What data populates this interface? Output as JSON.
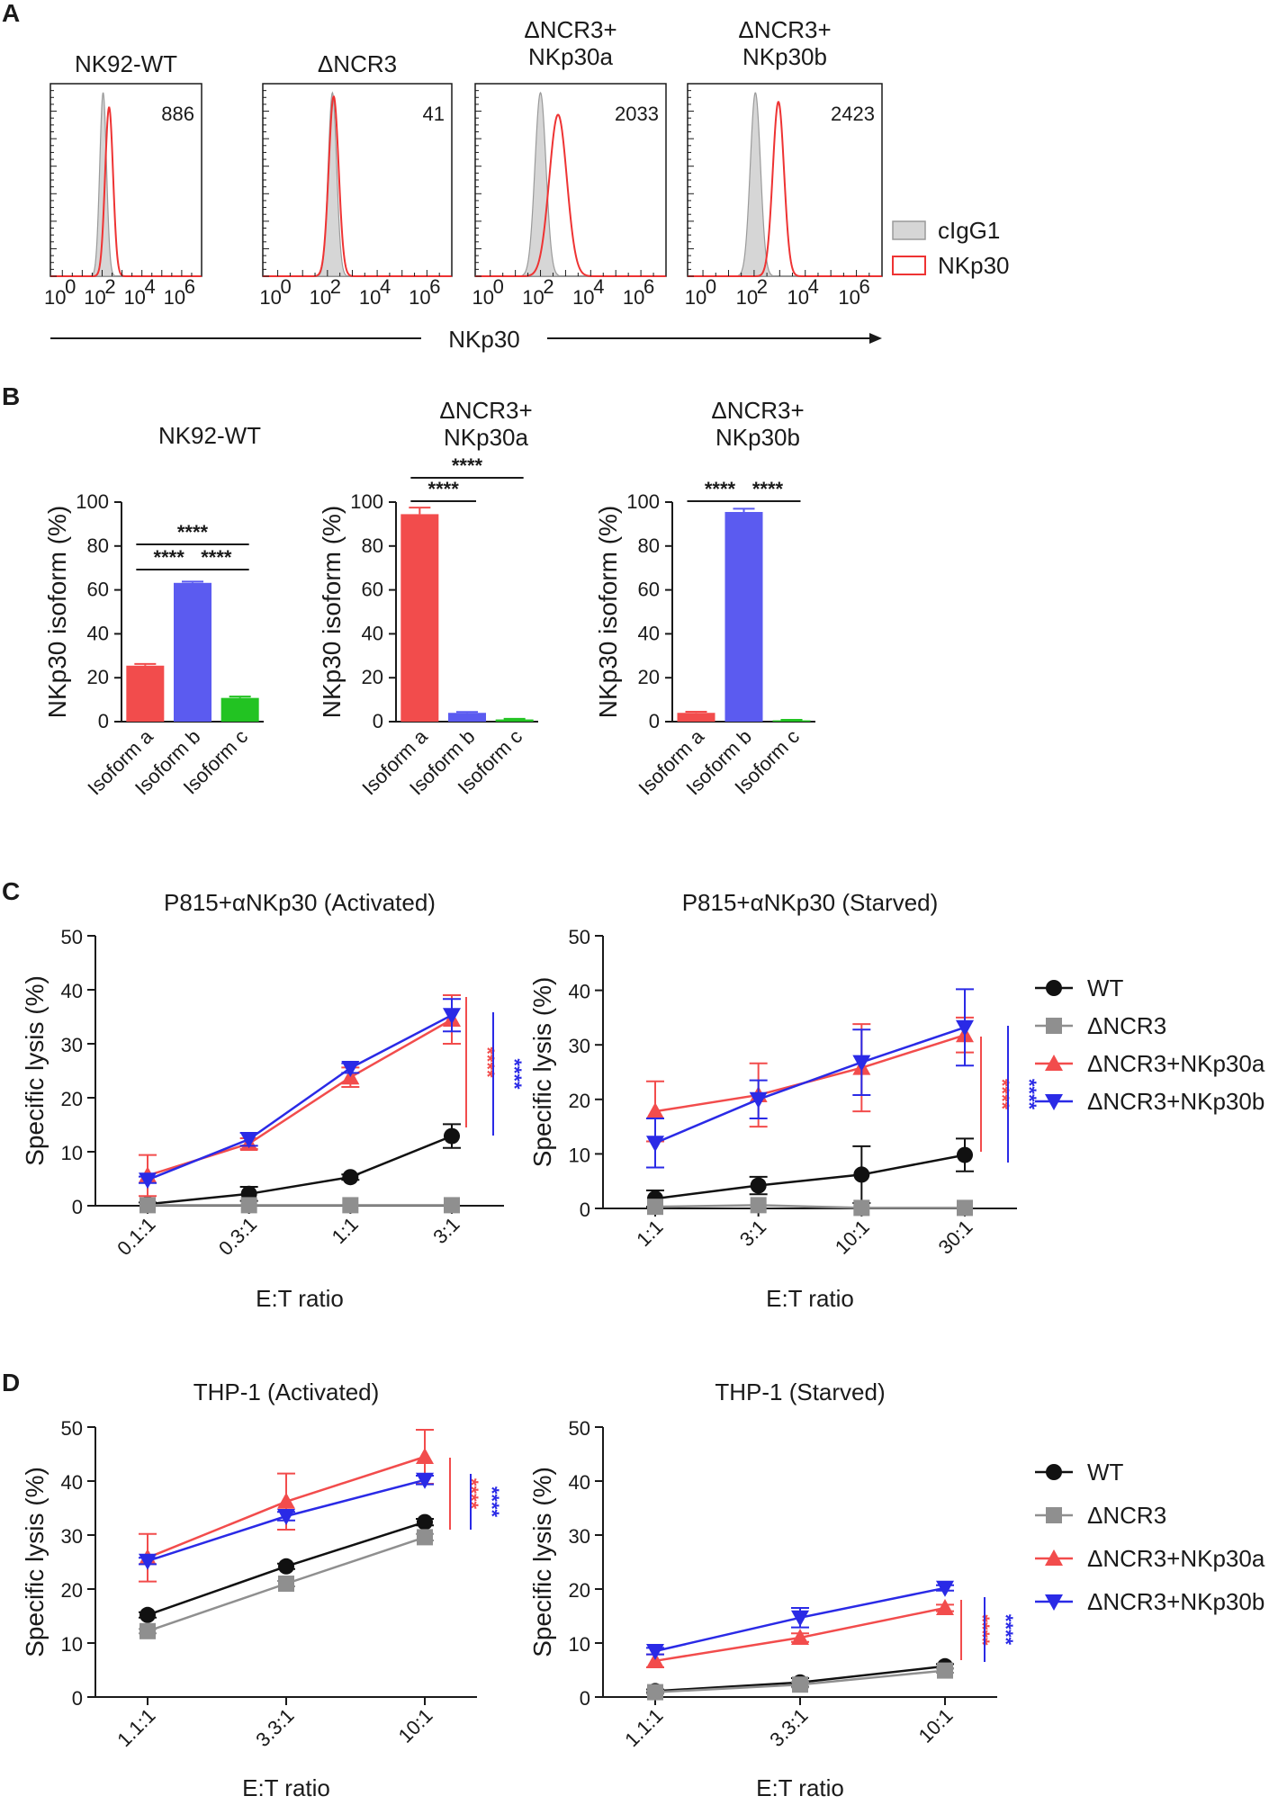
{
  "panel_labels": {
    "a": "A",
    "b": "B",
    "c": "C",
    "d": "D"
  },
  "colors": {
    "red": "#f24c4c",
    "blue": "#2a2ae6",
    "black": "#111111",
    "gray": "#8f8f8f",
    "green": "#22c322",
    "bar_blue": "#5b5bf0",
    "hist_fill": "#d6d6d6",
    "hist_red": "#ee3333"
  },
  "chart_data": [
    {
      "id": "A",
      "type": "histogram",
      "panels": [
        {
          "title_lines": [
            "NK92-WT"
          ],
          "mfi": "886",
          "ctrl_peak": 2.05,
          "ctrl_width": 0.17,
          "nk_peak": 2.35,
          "nk_width": 0.2,
          "nk_height": 0.92
        },
        {
          "title_lines": [
            "ΔNCR3"
          ],
          "mfi": "41",
          "ctrl_peak": 2.2,
          "ctrl_width": 0.17,
          "nk_peak": 2.25,
          "nk_width": 0.2,
          "nk_height": 0.98
        },
        {
          "title_lines": [
            "ΔNCR3+",
            "NKp30a"
          ],
          "mfi": "2033",
          "ctrl_peak": 2.0,
          "ctrl_width": 0.22,
          "nk_peak": 2.7,
          "nk_width": 0.35,
          "nk_height": 0.88
        },
        {
          "title_lines": [
            "ΔNCR3+",
            "NKp30b"
          ],
          "mfi": "2423",
          "ctrl_peak": 2.05,
          "ctrl_width": 0.2,
          "nk_peak": 2.95,
          "nk_width": 0.22,
          "nk_height": 0.95
        }
      ],
      "x_ticks": [
        {
          "base": "10",
          "exp": "0"
        },
        {
          "base": "10",
          "exp": "2"
        },
        {
          "base": "10",
          "exp": "4"
        },
        {
          "base": "10",
          "exp": "6"
        }
      ],
      "xlabel": "NKp30",
      "legend": [
        "cIgG1",
        "NKp30"
      ]
    },
    {
      "id": "B",
      "type": "bar",
      "ylabel": "NKp30 isoform (%)",
      "ylim": [
        0,
        100
      ],
      "yticks": [
        "0",
        "20",
        "40",
        "60",
        "80",
        "100"
      ],
      "categories": [
        "Isoform a",
        "Isoform b",
        "Isoform c"
      ],
      "panels": [
        {
          "title_lines": [
            "NK92-WT"
          ],
          "values": [
            25.5,
            63.2,
            10.8
          ],
          "errors": [
            0.8,
            0.6,
            0.6
          ],
          "sig": [
            {
              "from": 0,
              "to": 1,
              "label": "****"
            },
            {
              "from": 1,
              "to": 2,
              "label": "****"
            },
            {
              "from": 0,
              "to": 2,
              "label": "****"
            }
          ]
        },
        {
          "title_lines": [
            "ΔNCR3+",
            "NKp30a"
          ],
          "values": [
            94.5,
            4.0,
            1.0
          ],
          "errors": [
            3.0,
            0.4,
            0.3
          ],
          "sig": [
            {
              "from": 0,
              "to": 1,
              "label": "****"
            },
            {
              "from": 0,
              "to": 2,
              "label": "****"
            }
          ]
        },
        {
          "title_lines": [
            "ΔNCR3+",
            "NKp30b"
          ],
          "values": [
            4.0,
            95.5,
            0.6
          ],
          "errors": [
            0.5,
            1.5,
            0.2
          ],
          "sig": [
            {
              "from": 0,
              "to": 1,
              "label": "****"
            },
            {
              "from": 1,
              "to": 2,
              "label": "****"
            }
          ]
        }
      ]
    },
    {
      "id": "C",
      "type": "line",
      "ylabel": "Specific lysis (%)",
      "xlabel": "E:T ratio",
      "ylim": [
        0,
        50
      ],
      "yticks": [
        "0",
        "10",
        "20",
        "30",
        "40",
        "50"
      ],
      "legend": [
        "WT",
        "ΔNCR3",
        "ΔNCR3+NKp30a",
        "ΔNCR3+NKp30b"
      ],
      "panels": [
        {
          "title": "P815+αNKp30 (Activated)",
          "categories": [
            "0.1:1",
            "0.3:1",
            "1:1",
            "3:1"
          ],
          "series": [
            {
              "name": "WT",
              "values": [
                0.3,
                2.2,
                5.3,
                12.9
              ],
              "errors": [
                0.3,
                1.3,
                0.5,
                2.2
              ]
            },
            {
              "name": "ΔNCR3",
              "values": [
                0.1,
                0.1,
                0.1,
                0.1
              ],
              "errors": [
                0,
                0,
                0,
                0
              ]
            },
            {
              "name": "ΔNCR3+NKp30a",
              "values": [
                5.6,
                11.5,
                23.8,
                34.5
              ],
              "errors": [
                3.8,
                1.0,
                1.8,
                4.5
              ]
            },
            {
              "name": "ΔNCR3+NKp30b",
              "values": [
                4.8,
                12.3,
                25.5,
                35.3
              ],
              "errors": [
                0.6,
                1.2,
                0.9,
                3.0
              ]
            }
          ],
          "sig": [
            {
              "label": "****",
              "color": "red"
            },
            {
              "label": "****",
              "color": "blue"
            }
          ]
        },
        {
          "title": "P815+αNKp30 (Starved)",
          "categories": [
            "1:1",
            "3:1",
            "10:1",
            "30:1"
          ],
          "series": [
            {
              "name": "WT",
              "values": [
                1.8,
                4.2,
                6.2,
                9.8
              ],
              "errors": [
                1.5,
                1.6,
                5.2,
                3.0
              ]
            },
            {
              "name": "ΔNCR3",
              "values": [
                0.3,
                0.6,
                0.1,
                0.1
              ],
              "errors": [
                0,
                0,
                0,
                0
              ]
            },
            {
              "name": "ΔNCR3+NKp30a",
              "values": [
                17.8,
                20.8,
                25.8,
                31.8
              ],
              "errors": [
                5.5,
                5.8,
                8.0,
                3.2
              ]
            },
            {
              "name": "ΔNCR3+NKp30b",
              "values": [
                12.0,
                20.0,
                26.8,
                33.2
              ],
              "errors": [
                4.5,
                3.5,
                6.0,
                7.0
              ]
            }
          ],
          "sig": [
            {
              "label": "****",
              "color": "red"
            },
            {
              "label": "****",
              "color": "blue"
            }
          ]
        }
      ]
    },
    {
      "id": "D",
      "type": "line",
      "ylabel": "Specific lysis (%)",
      "xlabel": "E:T ratio",
      "ylim": [
        0,
        50
      ],
      "yticks": [
        "0",
        "10",
        "20",
        "30",
        "40",
        "50"
      ],
      "legend": [
        "WT",
        "ΔNCR3",
        "ΔNCR3+NKp30a",
        "ΔNCR3+NKp30b"
      ],
      "panels": [
        {
          "title": "THP-1 (Activated)",
          "categories": [
            "1.1:1",
            "3.3:1",
            "10:1"
          ],
          "series": [
            {
              "name": "WT",
              "values": [
                15.2,
                24.2,
                32.4
              ],
              "errors": [
                0.5,
                0.5,
                0.6
              ]
            },
            {
              "name": "ΔNCR3",
              "values": [
                12.2,
                21.0,
                29.6
              ],
              "errors": [
                0.4,
                0.5,
                0.6
              ]
            },
            {
              "name": "ΔNCR3+NKp30a",
              "values": [
                25.8,
                36.2,
                44.5
              ],
              "errors": [
                4.4,
                5.2,
                5.0
              ]
            },
            {
              "name": "ΔNCR3+NKp30b",
              "values": [
                25.2,
                33.5,
                40.2
              ],
              "errors": [
                0.6,
                0.8,
                0.8
              ]
            }
          ],
          "sig": [
            {
              "label": "****",
              "color": "red"
            },
            {
              "label": "****",
              "color": "blue"
            }
          ]
        },
        {
          "title": "THP-1 (Starved)",
          "categories": [
            "1.1:1",
            "3.3:1",
            "10:1"
          ],
          "series": [
            {
              "name": "WT",
              "values": [
                1.1,
                2.7,
                5.7
              ],
              "errors": [
                0.3,
                0.8,
                0.4
              ]
            },
            {
              "name": "ΔNCR3",
              "values": [
                0.9,
                2.3,
                4.9
              ],
              "errors": [
                0.3,
                0.5,
                0.4
              ]
            },
            {
              "name": "ΔNCR3+NKp30a",
              "values": [
                6.7,
                11.0,
                16.5
              ],
              "errors": [
                1.2,
                0.8,
                0.6
              ]
            },
            {
              "name": "ΔNCR3+NKp30b",
              "values": [
                8.5,
                14.7,
                20.2
              ],
              "errors": [
                0.6,
                1.8,
                0.5
              ]
            }
          ],
          "sig": [
            {
              "label": "****",
              "color": "red"
            },
            {
              "label": "****",
              "color": "blue"
            }
          ]
        }
      ]
    }
  ]
}
